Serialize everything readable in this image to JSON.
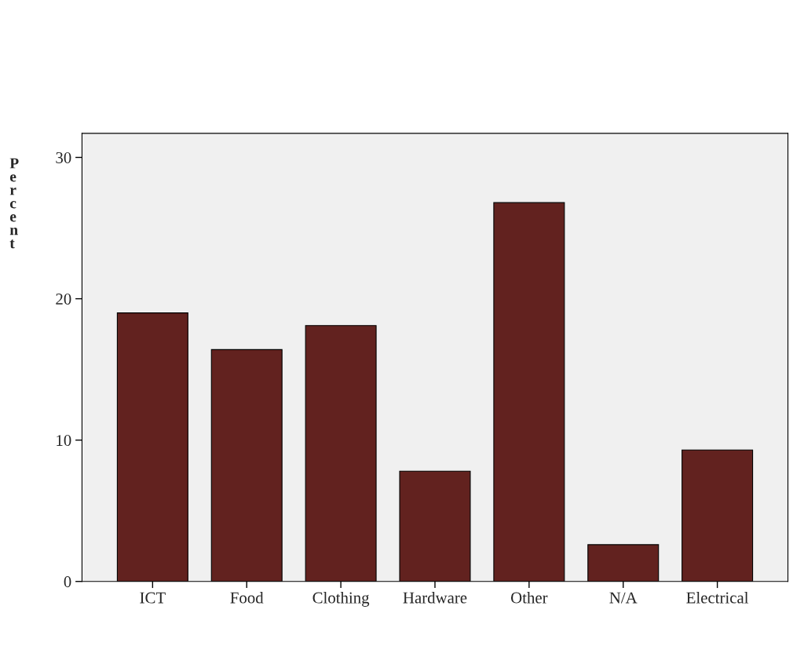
{
  "chart_data": {
    "type": "bar",
    "ylabel": "Percent",
    "categories": [
      "ICT",
      "Food",
      "Clothing",
      "Hardware",
      "Other",
      "N/A",
      "Electrical"
    ],
    "values": [
      19.0,
      16.4,
      18.1,
      7.8,
      26.8,
      2.6,
      9.3
    ],
    "color": "#62221f",
    "ylim": [
      0,
      31.7
    ],
    "yticks": [
      0,
      10,
      20,
      30
    ],
    "grid": false,
    "legend": false
  }
}
